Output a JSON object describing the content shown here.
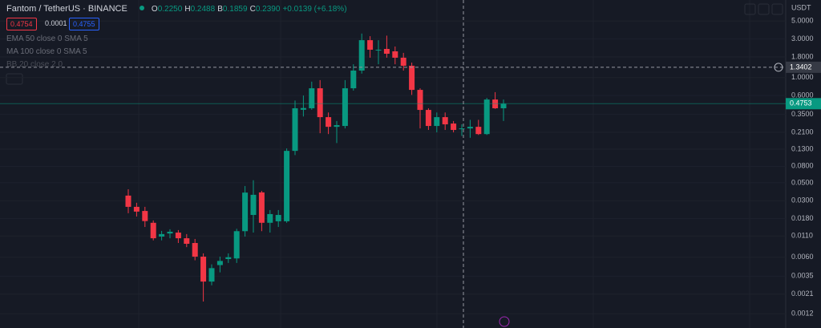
{
  "chart_data": {
    "type": "candlestick",
    "symbol": "Fantom / TetherUS · BINANCE",
    "ohlc_labels": {
      "o": "O",
      "o_value": "0.2250",
      "h": "H",
      "h_value": "0.2488",
      "l": "B",
      "l_value": "0.1859",
      "c": "C",
      "c_value": "0.2390",
      "change": "+0.0139 (+6.18%)"
    },
    "quote": {
      "sell": "0.4754",
      "spread": "0.0001",
      "buy": "0.4755"
    },
    "indicators": [
      "EMA 50 close 0 SMA 5",
      "MA 100 close 0 SMA 5",
      "BB 20 close 2 0"
    ],
    "currency": "USDT",
    "log_scale": true,
    "grid": true,
    "up_color": "#089981",
    "down_color": "#f23645",
    "categories": [
      null,
      null,
      null,
      null,
      null,
      null,
      null,
      null,
      null,
      null,
      null,
      null,
      null,
      null,
      null,
      null,
      null,
      null,
      null,
      null,
      null,
      null,
      null,
      null,
      null,
      null,
      null,
      null,
      null,
      null,
      null,
      null,
      null,
      null,
      null,
      null,
      null,
      null,
      null,
      null,
      null,
      null,
      null,
      null,
      null,
      null
    ],
    "open": [
      0.0347,
      0.0252,
      0.0224,
      0.016,
      0.0108,
      0.0118,
      0.0121,
      0.0103,
      0.009,
      0.0061,
      0.003,
      0.0048,
      0.0057,
      0.0058,
      0.0126,
      0.02,
      0.038,
      0.016,
      0.0167,
      0.0167,
      0.124,
      0.4,
      0.417,
      0.737,
      0.324,
      0.246,
      0.252,
      0.737,
      1.22,
      2.9,
      2.17,
      2.26,
      2.11,
      1.76,
      1.4,
      0.704,
      0.398,
      0.252,
      0.324,
      0.27,
      0.23,
      0.235,
      0.246,
      0.2,
      0.535,
      0.417
    ],
    "high": [
      0.0416,
      0.0283,
      0.0252,
      0.0171,
      0.0127,
      0.0133,
      0.013,
      0.0116,
      0.0101,
      0.0067,
      0.0049,
      0.0061,
      0.0067,
      0.0135,
      0.0456,
      0.0537,
      0.0397,
      0.023,
      0.023,
      0.133,
      0.52,
      0.6,
      0.89,
      0.93,
      0.37,
      0.29,
      0.93,
      1.46,
      3.5,
      3.25,
      2.9,
      3.3,
      2.42,
      2.02,
      1.53,
      0.737,
      0.417,
      0.37,
      0.37,
      0.29,
      0.264,
      0.3,
      0.3,
      0.56,
      0.66,
      0.535
    ],
    "low": [
      0.021,
      0.0191,
      0.0142,
      0.0097,
      0.0097,
      0.0103,
      0.009,
      0.008,
      0.0055,
      0.0017,
      0.0027,
      0.0039,
      0.0051,
      0.0051,
      0.0108,
      0.0121,
      0.0126,
      0.0121,
      0.0142,
      0.016,
      0.11,
      0.33,
      0.4,
      0.205,
      0.2,
      0.155,
      0.235,
      0.69,
      1.12,
      1.76,
      1.46,
      1.76,
      1.46,
      1.22,
      0.61,
      0.235,
      0.225,
      0.21,
      0.225,
      0.21,
      0.19,
      0.18,
      0.195,
      0.195,
      0.41,
      0.29
    ],
    "close": [
      0.0252,
      0.022,
      0.0168,
      0.0103,
      0.0116,
      0.0124,
      0.0103,
      0.0088,
      0.0061,
      0.003,
      0.0044,
      0.0054,
      0.006,
      0.0126,
      0.0378,
      0.0355,
      0.016,
      0.0205,
      0.02,
      0.124,
      0.417,
      0.42,
      0.737,
      0.324,
      0.246,
      0.258,
      0.737,
      1.22,
      2.9,
      2.21,
      2.21,
      1.97,
      1.76,
      1.4,
      0.704,
      0.398,
      0.252,
      0.324,
      0.264,
      0.225,
      0.235,
      0.246,
      0.2,
      0.535,
      0.417,
      0.475
    ],
    "ylim": [
      0.0008,
      9.1
    ],
    "yticks": [
      {
        "value": 5,
        "label": "5.0000"
      },
      {
        "value": 3,
        "label": "3.0000"
      },
      {
        "value": 1.8,
        "label": "1.8000"
      },
      {
        "value": 1,
        "label": "1.0000"
      },
      {
        "value": 0.6,
        "label": "0.6000"
      },
      {
        "value": 0.35,
        "label": "0.3500"
      },
      {
        "value": 0.21,
        "label": "0.2100"
      },
      {
        "value": 0.13,
        "label": "0.1300"
      },
      {
        "value": 0.08,
        "label": "0.0800"
      },
      {
        "value": 0.05,
        "label": "0.0500"
      },
      {
        "value": 0.03,
        "label": "0.0300"
      },
      {
        "value": 0.018,
        "label": "0.0180"
      },
      {
        "value": 0.011,
        "label": "0.0110"
      },
      {
        "value": 0.006,
        "label": "0.0060"
      },
      {
        "value": 0.0035,
        "label": "0.0035"
      },
      {
        "value": 0.0021,
        "label": "0.0021"
      },
      {
        "value": 0.0012,
        "label": "0.0012"
      }
    ],
    "crosshair_price": 1.3402,
    "last_price": 0.4753
  }
}
